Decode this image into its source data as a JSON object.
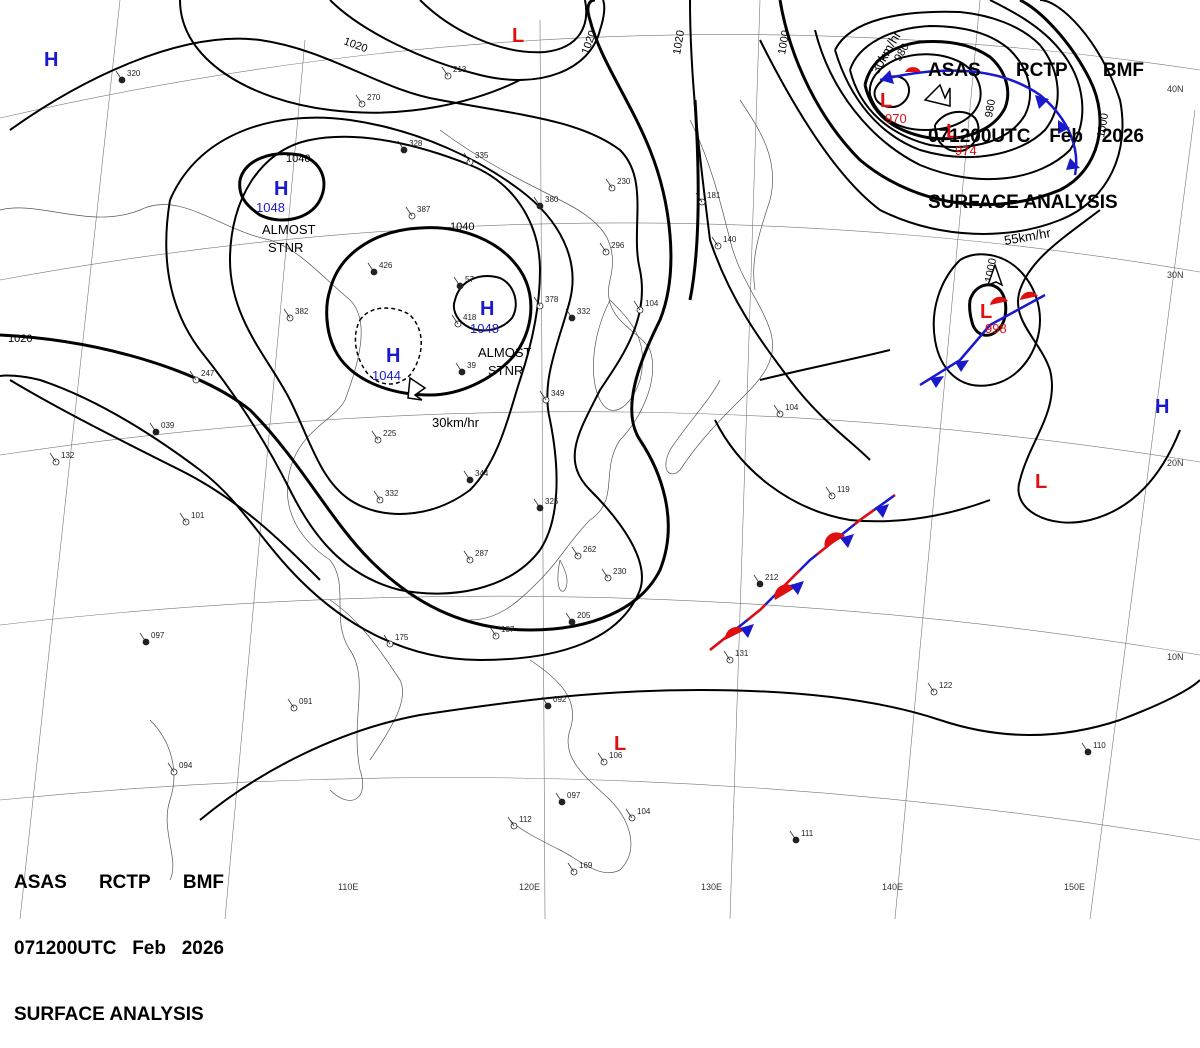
{
  "header": {
    "line1": [
      "ASAS",
      "RCTP",
      "BMF"
    ],
    "line2": [
      "071200UTC",
      "Feb",
      "2026"
    ],
    "line3": "SURFACE ANALYSIS"
  },
  "axes": {
    "lon_labels": [
      "110E",
      "120E",
      "130E",
      "140E",
      "150E"
    ],
    "lat_labels": [
      "40N",
      "30N",
      "20N",
      "10N"
    ]
  },
  "isobar_labels": [
    "1020",
    "1020",
    "1020",
    "1020",
    "1040",
    "1040",
    "1000",
    "1000",
    "1000",
    "980",
    "980"
  ],
  "pressure_systems": [
    {
      "type": "H",
      "value": "1048"
    },
    {
      "type": "H",
      "value": "1048"
    },
    {
      "type": "H",
      "value": "1044"
    },
    {
      "type": "H",
      "value": ""
    },
    {
      "type": "H",
      "value": ""
    },
    {
      "type": "L",
      "value": "970"
    },
    {
      "type": "L",
      "value": "974"
    },
    {
      "type": "L",
      "value": "998"
    },
    {
      "type": "L",
      "value": ""
    },
    {
      "type": "L",
      "value": ""
    },
    {
      "type": "L",
      "value": ""
    }
  ],
  "notes": {
    "almost_stnr_1": [
      "ALMOST",
      "STNR"
    ],
    "almost_stnr_2": [
      "ALMOST",
      "STNR"
    ],
    "speed_1": "30km/hr",
    "speed_2": "55km/hr",
    "speed_3": "30km/hr"
  },
  "colors": {
    "high": "#1a1acc",
    "low": "#e01010",
    "warm_front": "#e01010",
    "cold_front": "#1a1acc"
  },
  "stations": [
    "320",
    "270",
    "213",
    "328",
    "335",
    "230",
    "380",
    "387",
    "296",
    "426",
    "181",
    "140",
    "57",
    "418",
    "378",
    "332",
    "382",
    "247",
    "39",
    "349",
    "225",
    "039",
    "132",
    "101",
    "344",
    "332",
    "287",
    "325",
    "262",
    "230",
    "205",
    "187",
    "175",
    "097",
    "091",
    "094",
    "092",
    "106",
    "112",
    "097",
    "104",
    "169",
    "111",
    "122",
    "119",
    "212",
    "131",
    "104",
    "110",
    "104"
  ]
}
